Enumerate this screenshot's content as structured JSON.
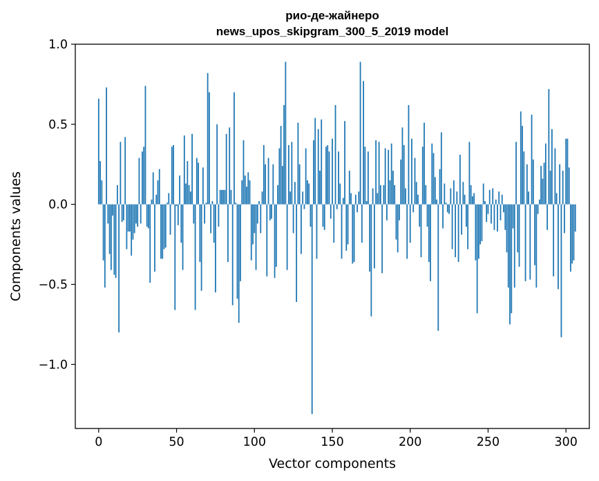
{
  "chart_data": {
    "type": "bar",
    "title_line1": "рио-де-жайнеро",
    "title_line2": "news_upos_skipgram_300_5_2019 model",
    "xlabel": "Vector components",
    "ylabel": "Components values",
    "xlim": [
      -15,
      315
    ],
    "ylim": [
      -1.4,
      1.0
    ],
    "xticks": [
      0,
      50,
      100,
      150,
      200,
      250,
      300
    ],
    "xtick_labels": [
      "0",
      "50",
      "100",
      "150",
      "200",
      "250",
      "300"
    ],
    "yticks": [
      1.0,
      0.5,
      0.0,
      -0.5,
      -1.0
    ],
    "ytick_labels": [
      "1.0",
      "0.5",
      "0.0",
      "−0.5",
      "−1.0"
    ],
    "bar_color": "#1f77b4",
    "grid": false,
    "values": [
      0.66,
      0.27,
      0.15,
      -0.35,
      -0.52,
      0.73,
      -0.12,
      -0.31,
      -0.41,
      -0.07,
      -0.44,
      -0.46,
      0.12,
      -0.8,
      0.39,
      -0.11,
      -0.1,
      0.42,
      -0.28,
      -0.17,
      -0.17,
      -0.32,
      -0.22,
      -0.18,
      -0.12,
      -0.14,
      0.29,
      -0.12,
      0.33,
      0.36,
      0.74,
      -0.14,
      -0.15,
      -0.49,
      0.03,
      0.2,
      -0.42,
      0.06,
      0.15,
      0.22,
      -0.34,
      -0.34,
      -0.28,
      -0.27,
      0.01,
      0.07,
      -0.19,
      0.36,
      0.37,
      -0.66,
      -0.01,
      -0.13,
      0.18,
      -0.24,
      -0.41,
      0.43,
      0.13,
      0.27,
      0.12,
      0.08,
      0.44,
      -0.12,
      -0.66,
      0.29,
      0.26,
      -0.36,
      -0.54,
      0.23,
      -0.12,
      0.01,
      0.82,
      0.7,
      -0.18,
      0.02,
      -0.24,
      -0.55,
      0.5,
      -0.14,
      0.09,
      0.09,
      0.09,
      0.09,
      0.44,
      -0.36,
      0.48,
      0.09,
      -0.63,
      0.7,
      0.01,
      -0.59,
      -0.74,
      -0.48,
      0.15,
      0.4,
      0.18,
      0.11,
      0.2,
      0.15,
      -0.35,
      -0.25,
      -0.18,
      -0.41,
      -0.12,
      0.02,
      -0.18,
      0.08,
      0.37,
      0.25,
      -0.45,
      0.29,
      -0.1,
      -0.09,
      0.25,
      -0.46,
      -0.39,
      0.12,
      0.35,
      0.49,
      0.24,
      0.62,
      0.89,
      -0.41,
      0.37,
      0.08,
      0.39,
      -0.18,
      0.14,
      -0.61,
      0.51,
      0.25,
      -0.31,
      0.08,
      -0.03,
      0.35,
      0.15,
      0.13,
      -0.14,
      -1.31,
      0.4,
      0.54,
      -0.34,
      0.47,
      0.21,
      0.53,
      -0.14,
      -0.16,
      0.36,
      0.37,
      0.33,
      -0.09,
      0.41,
      -0.24,
      0.62,
      -0.03,
      0.33,
      0.13,
      -0.34,
      0.04,
      0.52,
      -0.29,
      -0.25,
      0.21,
      0.07,
      -0.37,
      -0.36,
      0.06,
      -0.05,
      0.08,
      0.89,
      -0.24,
      0.77,
      0.36,
      0.02,
      0.33,
      -0.42,
      -0.7,
      0.1,
      -0.4,
      0.4,
      0.07,
      0.39,
      0.12,
      -0.43,
      0.12,
      0.35,
      -0.1,
      0.34,
      0.15,
      0.38,
      0.21,
      0.12,
      -0.22,
      -0.3,
      -0.1,
      0.28,
      0.48,
      0.37,
      0.1,
      -0.34,
      0.62,
      -0.24,
      0.41,
      -0.05,
      0.29,
      0.14,
      0.06,
      -0.14,
      -0.33,
      0.36,
      0.51,
      0.12,
      -0.14,
      -0.36,
      -0.48,
      0.38,
      0.32,
      0.17,
      0.03,
      -0.79,
      0.22,
      0.45,
      -0.15,
      0.13,
      0.01,
      -0.05,
      -0.06,
      0.1,
      -0.28,
      0.15,
      -0.33,
      0.08,
      -0.36,
      0.31,
      -0.19,
      0.14,
      0.06,
      -0.14,
      -0.28,
      0.39,
      0.12,
      0.05,
      0.07,
      -0.35,
      -0.68,
      -0.34,
      -0.25,
      -0.23,
      0.13,
      0.02,
      -0.11,
      -0.06,
      0.09,
      -0.12,
      0.1,
      -0.16,
      0.03,
      -0.17,
      0.08,
      -0.1,
      0.06,
      -0.05,
      -0.16,
      -0.3,
      -0.52,
      -0.75,
      -0.68,
      -0.15,
      -0.52,
      0.39,
      -0.3,
      -0.39,
      0.58,
      0.49,
      0.33,
      -0.48,
      0.25,
      0.08,
      -0.47,
      0.56,
      0.28,
      -0.38,
      -0.52,
      -0.06,
      0.03,
      0.24,
      0.16,
      0.26,
      0.38,
      -0.16,
      0.72,
      0.21,
      0.47,
      -0.45,
      0.35,
      0.07,
      -0.53,
      0.25,
      -0.83,
      0.21,
      -0.18,
      0.41,
      0.41,
      0.23,
      -0.42,
      -0.37,
      -0.35,
      -0.17
    ]
  }
}
